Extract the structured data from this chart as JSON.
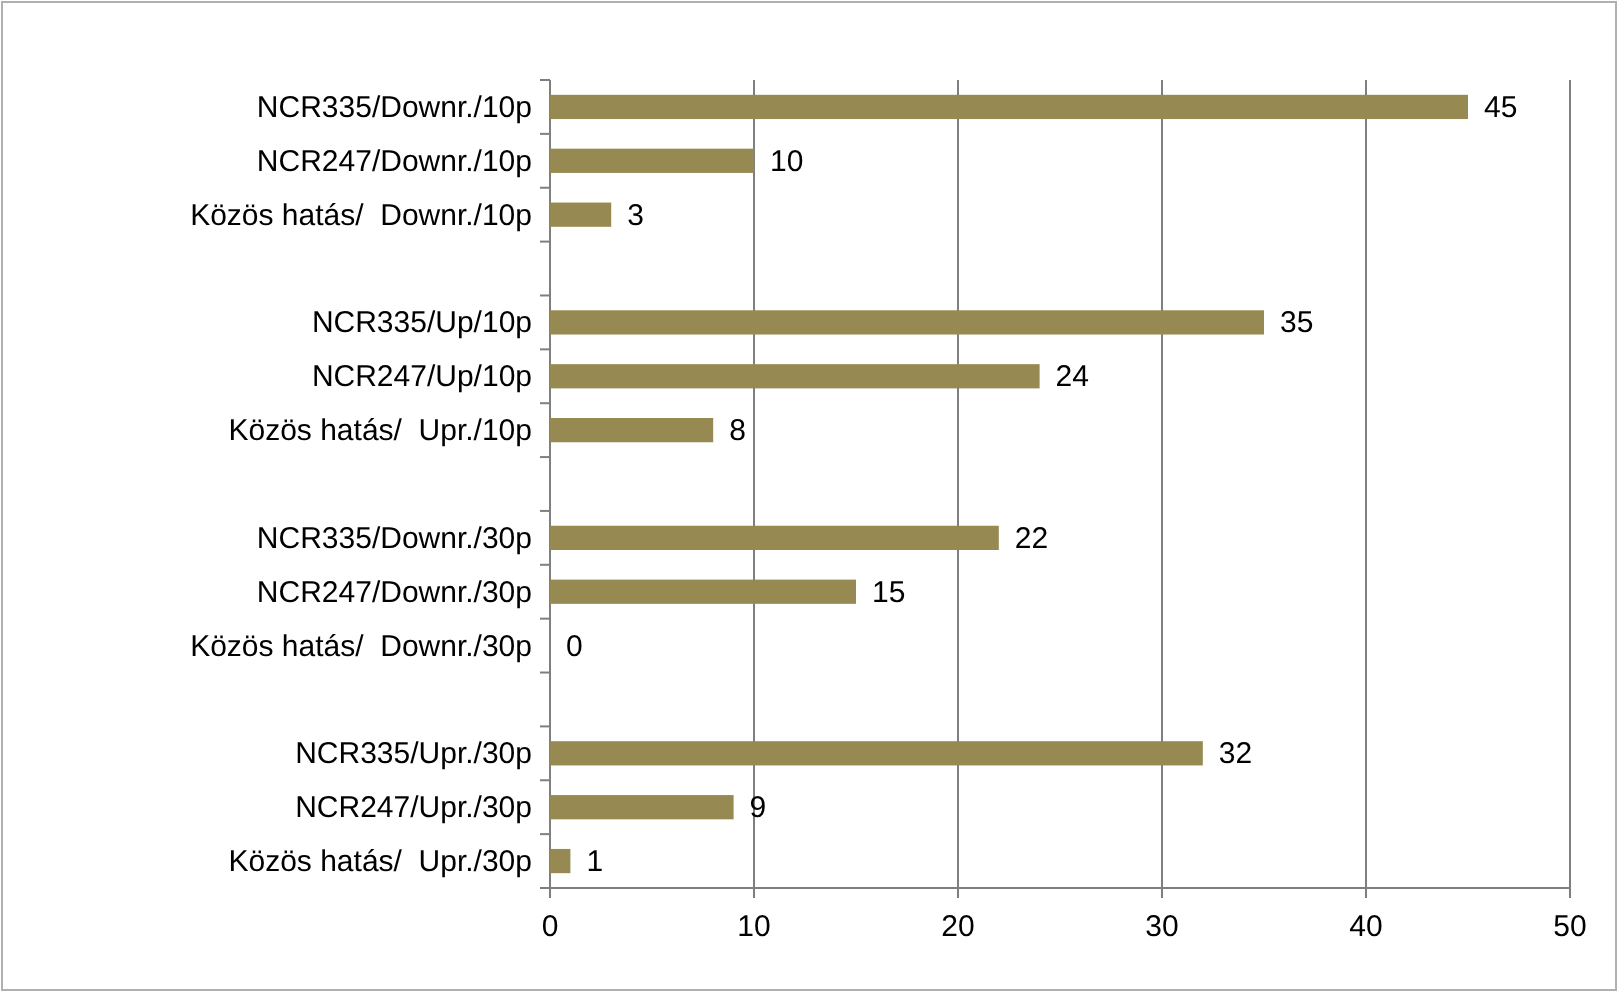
{
  "chart_data": {
    "type": "bar",
    "orientation": "horizontal",
    "categories": [
      "NCR335/Downr./10p",
      "NCR247/Downr./10p",
      "Közös hatás/  Downr./10p",
      null,
      "NCR335/Up/10p",
      "NCR247/Up/10p",
      "Közös hatás/  Upr./10p",
      null,
      "NCR335/Downr./30p",
      "NCR247/Downr./30p",
      "Közös hatás/  Downr./30p",
      null,
      "NCR335/Upr./30p",
      "NCR247/Upr./30p",
      "Közös hatás/  Upr./30p"
    ],
    "values": [
      45,
      10,
      3,
      null,
      35,
      24,
      8,
      null,
      22,
      15,
      0,
      null,
      32,
      9,
      1
    ],
    "color": "#968a52",
    "xlim": [
      0,
      50
    ],
    "xticks": [
      0,
      10,
      20,
      30,
      40,
      50
    ],
    "grid": "x",
    "data_labels": true
  }
}
